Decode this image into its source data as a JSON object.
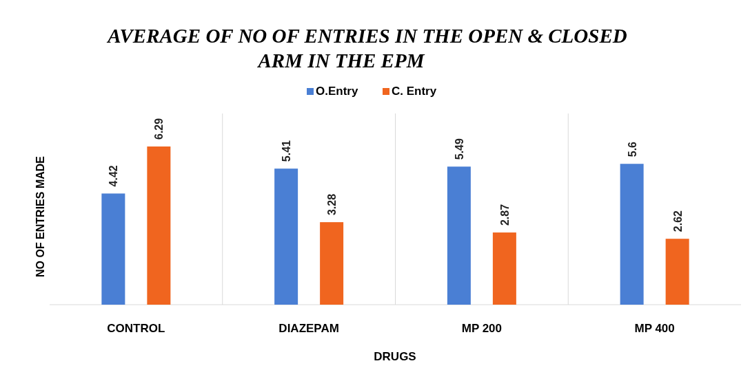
{
  "chart_data": {
    "type": "bar",
    "title": "AVERAGE OF NO OF ENTRIES IN THE OPEN & CLOSED ARM IN THE EPM",
    "xlabel": "DRUGS",
    "ylabel": "NO OF ENTRIES MADE",
    "categories": [
      "CONTROL",
      "DIAZEPAM",
      "MP 200",
      "MP 400"
    ],
    "series": [
      {
        "name": "O.Entry",
        "color": "#4a7fd4",
        "values": [
          4.42,
          5.41,
          5.49,
          5.6
        ]
      },
      {
        "name": "C. Entry",
        "color": "#f0651f",
        "values": [
          6.29,
          3.28,
          2.87,
          2.62
        ]
      }
    ],
    "data_labels": true,
    "grid": "x",
    "legend": "top"
  }
}
